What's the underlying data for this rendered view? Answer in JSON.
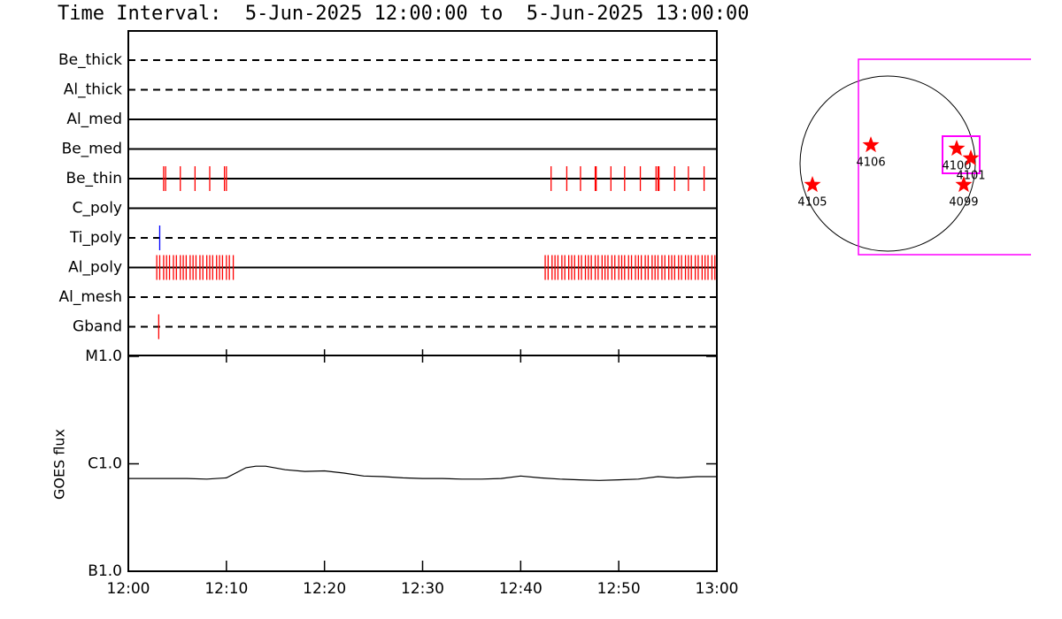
{
  "chart_data": [
    {
      "type": "timeline",
      "title": "Time Interval:  5-Jun-2025 12:00:00 to  5-Jun-2025 13:00:00",
      "xlim": [
        0,
        60
      ],
      "series": [
        {
          "name": "Be_thick",
          "style": "dashed",
          "x": []
        },
        {
          "name": "Al_thick",
          "style": "dashed",
          "x": []
        },
        {
          "name": "Al_med",
          "style": "solid",
          "x": []
        },
        {
          "name": "Be_med",
          "style": "solid",
          "x": []
        },
        {
          "name": "Be_thin",
          "style": "solid",
          "color": "#ff0000",
          "x": [
            3.6,
            3.8,
            5.3,
            6.8,
            8.3,
            9.8,
            10.0,
            43.1,
            44.7,
            46.1,
            47.6,
            47.7,
            49.2,
            50.6,
            52.2,
            53.8,
            54.0,
            54.1,
            55.7,
            57.1,
            58.7
          ]
        },
        {
          "name": "C_poly",
          "style": "solid",
          "x": []
        },
        {
          "name": "Ti_poly",
          "style": "dashed",
          "color": "#0000ff",
          "x": [
            3.2
          ]
        },
        {
          "name": "Al_poly",
          "style": "solid",
          "color": "#ff0000",
          "x": [
            2.9,
            3.2,
            3.6,
            3.9,
            4.2,
            4.6,
            4.9,
            5.3,
            5.6,
            5.9,
            6.3,
            6.6,
            6.9,
            7.3,
            7.6,
            8.0,
            8.3,
            8.6,
            9.0,
            9.3,
            9.6,
            10.0,
            10.3,
            10.7,
            42.5,
            42.8,
            43.2,
            43.5,
            43.8,
            44.2,
            44.5,
            44.9,
            45.2,
            45.5,
            45.9,
            46.2,
            46.6,
            46.9,
            47.2,
            47.6,
            47.9,
            48.3,
            48.6,
            48.9,
            49.3,
            49.6,
            50.0,
            50.3,
            50.6,
            51.0,
            51.3,
            51.7,
            52.0,
            52.3,
            52.7,
            53.0,
            53.4,
            53.7,
            54.0,
            54.4,
            54.7,
            55.1,
            55.4,
            55.7,
            56.1,
            56.4,
            56.8,
            57.1,
            57.4,
            57.8,
            58.1,
            58.5,
            58.8,
            59.1,
            59.5,
            59.8
          ]
        },
        {
          "name": "Al_mesh",
          "style": "dashed",
          "x": []
        },
        {
          "name": "Gband",
          "style": "dashed",
          "color": "#ff0000",
          "x": [
            3.1
          ]
        }
      ]
    },
    {
      "type": "line",
      "ylabel": "GOES flux",
      "log": true,
      "color": "#000000",
      "xlim": [
        0,
        60
      ],
      "xticks": [
        {
          "value": 0,
          "label": "12:00"
        },
        {
          "value": 10,
          "label": "12:10"
        },
        {
          "value": 20,
          "label": "12:20"
        },
        {
          "value": 30,
          "label": "12:30"
        },
        {
          "value": 40,
          "label": "12:40"
        },
        {
          "value": 50,
          "label": "12:50"
        },
        {
          "value": 60,
          "label": "13:00"
        }
      ],
      "ylim": [
        1e-07,
        1e-05
      ],
      "yticks": [
        {
          "value": 1e-07,
          "label": "B1.0"
        },
        {
          "value": 1e-06,
          "label": "C1.0"
        },
        {
          "value": 1e-05,
          "label": "M1.0"
        }
      ],
      "x": [
        0,
        2,
        4,
        6,
        8,
        10,
        12,
        13,
        14,
        16,
        18,
        20,
        22,
        24,
        26,
        28,
        30,
        32,
        34,
        36,
        38,
        40,
        42,
        44,
        46,
        48,
        50,
        52,
        54,
        56,
        58,
        60
      ],
      "values": [
        7.3e-07,
        7.3e-07,
        7.3e-07,
        7.3e-07,
        7.2e-07,
        7.4e-07,
        9.2e-07,
        9.5e-07,
        9.5e-07,
        8.8e-07,
        8.5e-07,
        8.6e-07,
        8.2e-07,
        7.7e-07,
        7.6e-07,
        7.4e-07,
        7.3e-07,
        7.3e-07,
        7.2e-07,
        7.2e-07,
        7.3e-07,
        7.7e-07,
        7.4e-07,
        7.2e-07,
        7.1e-07,
        7e-07,
        7.1e-07,
        7.2e-07,
        7.6e-07,
        7.4e-07,
        7.6e-07,
        7.6e-07
      ]
    },
    {
      "type": "map",
      "color": "#ff0000",
      "labels": [
        "4106",
        "4100",
        "4101",
        "4099",
        "4105"
      ],
      "x": [
        -181,
        745,
        898,
        821,
        -812
      ],
      "y": [
        200,
        162,
        57,
        -229,
        -229
      ]
    }
  ]
}
